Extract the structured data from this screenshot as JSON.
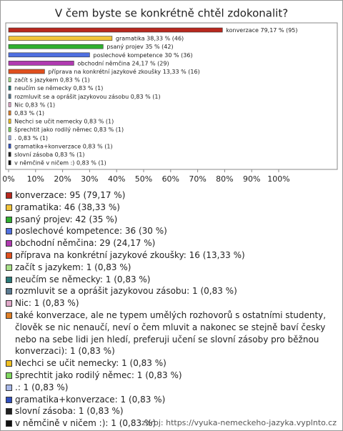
{
  "chart_data": {
    "type": "bar",
    "orientation": "horizontal",
    "title": "V čem byste se konkrétně chtěl zdokonalit?",
    "categories": [
      "konverzace",
      "gramatika",
      "psaný projev",
      "poslechové kompetence",
      "obchodní němčina",
      "příprava na konkrétní jazykové zkoušky",
      "začít s jazykem",
      "neučím se německy",
      "rozmluvit se a oprášit jazykovou zásobu",
      "Nic",
      null,
      "Nechci se učit nemecky",
      "šprechtit  jako rodilý němec",
      ".",
      "gramatika+konverzace",
      "slovní zásoba",
      "v němčině v ničem :)"
    ],
    "values": [
      79.17,
      38.33,
      35,
      30,
      24.17,
      13.33,
      0.83,
      0.83,
      0.83,
      0.83,
      0.83,
      0.83,
      0.83,
      0.83,
      0.83,
      0.83,
      0.83
    ],
    "value_labels": [
      "79,17 % (95)",
      "38,33 % (46)",
      "35 % (42)",
      "30 % (36)",
      "24,17 % (29)",
      "13,33 % (16)",
      "0,83 % (1)",
      "0,83 % (1)",
      "0,83 % (1)",
      "0,83 % (1)",
      "0,83 % (1)",
      "0,83 % (1)",
      "0,83 % (1)",
      "0,83 % (1)",
      "0,83 % (1)",
      "0,83 % (1)",
      "0,83 % (1)"
    ],
    "colors": [
      "#b8281e",
      "#f2c43a",
      "#30b030",
      "#5070e0",
      "#b03ab0",
      "#e0501e",
      "#a8e088",
      "#2a7a7a",
      "#5a7a90",
      "#e0a8c8",
      "#e08028",
      "#f0c020",
      "#80d860",
      "#a8b8e8",
      "#3050c0",
      "#202020",
      "#111111"
    ],
    "legend_labels": [
      "konverzace: 95 (79,17 %)",
      "gramatika: 46 (38,33 %)",
      "psaný projev: 42 (35 %)",
      "poslechové kompetence: 36 (30 %)",
      "obchodní němčina: 29 (24,17 %)",
      "příprava na konkrétní jazykové zkoušky: 16 (13,33 %)",
      "začít s jazykem: 1 (0,83 %)",
      "neučím se německy: 1 (0,83 %)",
      "rozmluvit se a oprášit jazykovou zásobu: 1 (0,83 %)",
      "Nic: 1 (0,83 %)",
      "také konverzace, ale ne typem umělých rozhovorů s ostatními studenty, člověk se nic nenaučí, neví o čem mluvit a nakonec se stejně baví česky nebo na sebe lidi jen hledí, preferuji učení se slovní zásoby pro běžnou konverzaci): 1 (0,83 %)",
      "Nechci se učit nemecky: 1 (0,83 %)",
      "šprechtit  jako rodilý němec: 1 (0,83 %)",
      ".: 1 (0,83 %)",
      "gramatika+konverzace: 1 (0,83 %)",
      "slovní zásoba: 1 (0,83 %)",
      "v němčině v ničem :): 1 (0,83 %)"
    ],
    "xlim": [
      0,
      100
    ],
    "xticks": [
      {
        "value": 0,
        "label": "0%"
      },
      {
        "value": 10,
        "label": "10%"
      },
      {
        "value": 20,
        "label": "20%"
      },
      {
        "value": 30,
        "label": "30%"
      },
      {
        "value": 40,
        "label": "40%"
      },
      {
        "value": 50,
        "label": "50%"
      },
      {
        "value": 60,
        "label": "60%"
      },
      {
        "value": 70,
        "label": "70%"
      },
      {
        "value": 80,
        "label": "80%"
      },
      {
        "value": 90,
        "label": "90%"
      },
      {
        "value": 100,
        "label": "100%"
      }
    ],
    "source": "zdroj: https://vyuka-nemeckeho-jazyka.vyplnto.cz"
  }
}
